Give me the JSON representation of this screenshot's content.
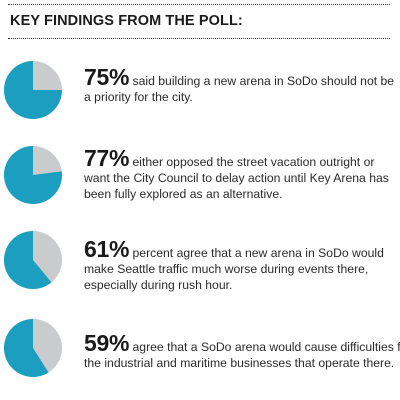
{
  "heading": "KEY FINDINGS FROM THE POLL:",
  "colors": {
    "primary": "#1b9ec0",
    "remainder": "#c9cbcc"
  },
  "chart_data": [
    {
      "type": "pie",
      "slices": [
        {
          "label": "said building a new arena in SoDo should not be a priority for the city",
          "value": 75
        },
        {
          "label": "other",
          "value": 25
        }
      ]
    },
    {
      "type": "pie",
      "slices": [
        {
          "label": "either opposed the street vacation outright or want the City Council to delay action until Key Arena has been fully explored as an alternative",
          "value": 77
        },
        {
          "label": "other",
          "value": 23
        }
      ]
    },
    {
      "type": "pie",
      "slices": [
        {
          "label": "percent agree that a new arena in SoDo would make Seattle traffic much worse during events there, especially during rush hour",
          "value": 61
        },
        {
          "label": "other",
          "value": 39
        }
      ]
    },
    {
      "type": "pie",
      "slices": [
        {
          "label": "agree that a SoDo arena would cause difficulties for the industrial and maritime businesses that operate there",
          "value": 59
        },
        {
          "label": "other",
          "value": 41
        }
      ]
    }
  ],
  "findings": [
    {
      "percent_value": 75,
      "percent_text": "75%",
      "text_line1": "said building a new arena in SoDo should not be",
      "text_line2": "a priority for the city.",
      "text_line3": ""
    },
    {
      "percent_value": 77,
      "percent_text": "77%",
      "text_line1": "either opposed the street vacation outright or",
      "text_line2": "want the City Council to delay action until Key Arena has",
      "text_line3": "been fully explored as an alternative."
    },
    {
      "percent_value": 61,
      "percent_text": "61%",
      "text_line1": "percent agree that a new arena in SoDo would",
      "text_line2": "make Seattle traffic much worse during events there,",
      "text_line3": "especially during rush hour."
    },
    {
      "percent_value": 59,
      "percent_text": "59%",
      "text_line1": "agree that a SoDo arena would cause difficulties fo",
      "text_line2": "the industrial and maritime businesses that operate there.",
      "text_line3": ""
    }
  ]
}
